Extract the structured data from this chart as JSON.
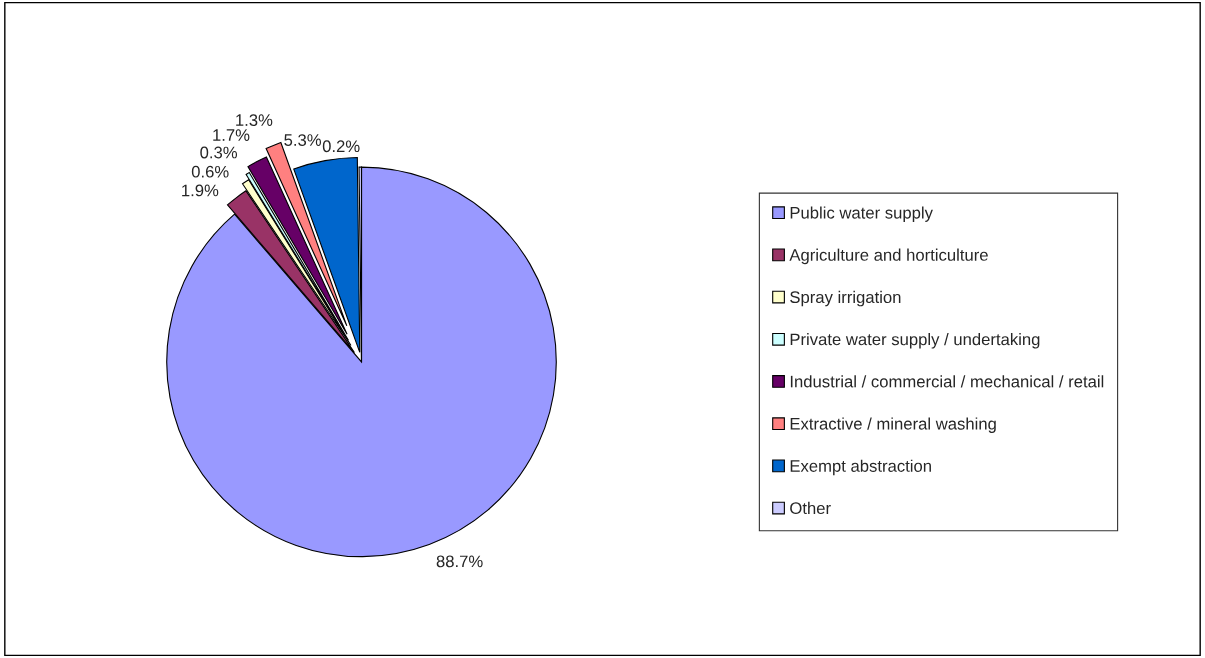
{
  "chart_data": {
    "type": "pie",
    "categories": [
      "Public water supply",
      "Agriculture and horticulture",
      "Spray irrigation",
      "Private water supply / undertaking",
      "Industrial / commercial / mechanical / retail",
      "Extractive / mineral washing",
      "Exempt abstraction",
      "Other"
    ],
    "values": [
      88.7,
      1.9,
      0.6,
      0.3,
      1.7,
      1.3,
      5.3,
      0.2
    ],
    "value_labels": [
      "88.7%",
      "1.9%",
      "0.6%",
      "0.3%",
      "1.7%",
      "1.3%",
      "5.3%",
      "0.2%"
    ],
    "colors": [
      "#9999ff",
      "#993366",
      "#ffffcc",
      "#ccffff",
      "#660066",
      "#ff8080",
      "#0066cc",
      "#ccccff"
    ],
    "legend": "right"
  }
}
